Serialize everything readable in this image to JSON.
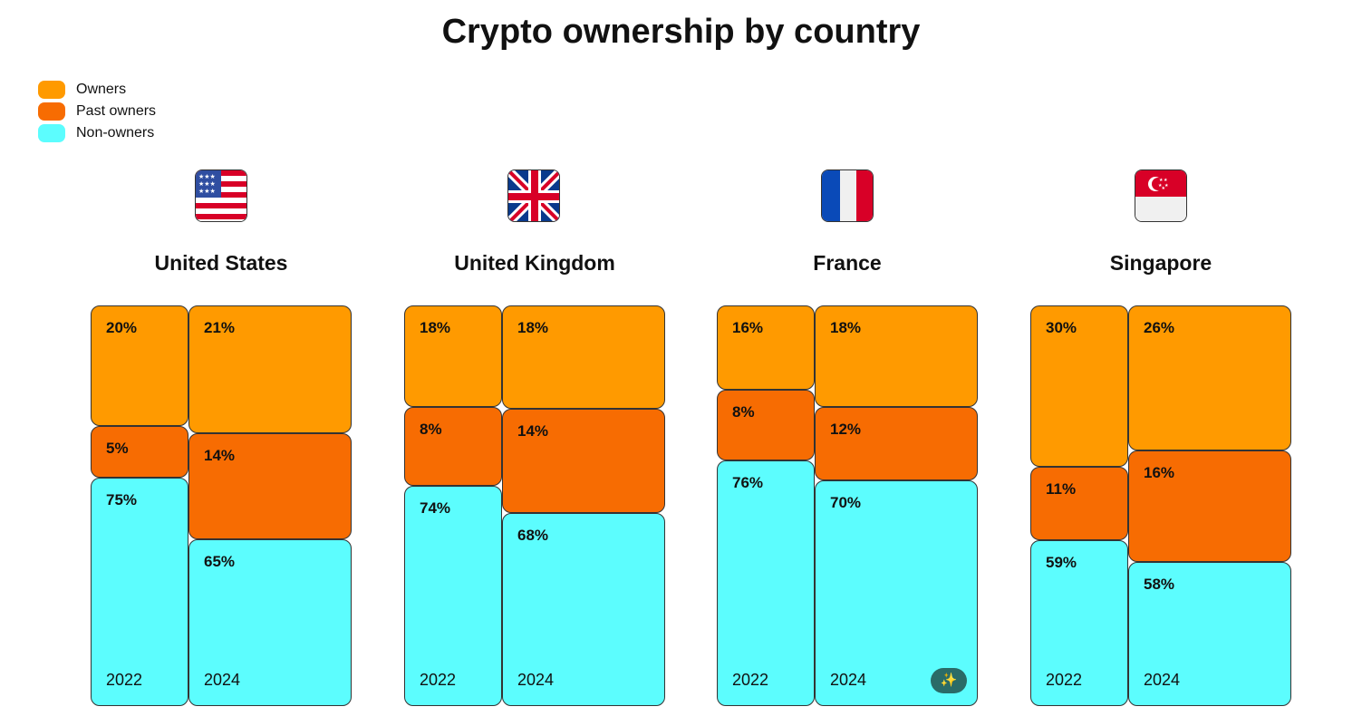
{
  "chart_data": {
    "type": "marimekko",
    "title": "Crypto ownership by country",
    "legend": [
      {
        "name": "Owners",
        "color": "#ff9a00"
      },
      {
        "name": "Past owners",
        "color": "#f76c02"
      },
      {
        "name": "Non-owners",
        "color": "#5cfdfe"
      }
    ],
    "countries": [
      {
        "name": "United States",
        "flag": "us-flag",
        "years": [
          {
            "year": "2022",
            "values": [
              20,
              5,
              75
            ]
          },
          {
            "year": "2024",
            "values": [
              21,
              14,
              65
            ]
          }
        ]
      },
      {
        "name": "United Kingdom",
        "flag": "uk-flag",
        "years": [
          {
            "year": "2022",
            "values": [
              18,
              8,
              74
            ]
          },
          {
            "year": "2024",
            "values": [
              18,
              14,
              68
            ]
          }
        ]
      },
      {
        "name": "France",
        "flag": "france-flag",
        "years": [
          {
            "year": "2022",
            "values": [
              16,
              8,
              76
            ]
          },
          {
            "year": "2024",
            "values": [
              18,
              12,
              70
            ]
          }
        ]
      },
      {
        "name": "Singapore",
        "flag": "singapore-flag",
        "years": [
          {
            "year": "2022",
            "values": [
              30,
              11,
              59
            ]
          },
          {
            "year": "2024",
            "values": [
              26,
              16,
              58
            ]
          }
        ]
      }
    ]
  },
  "magic_button_icon": "magic-wand-icon"
}
